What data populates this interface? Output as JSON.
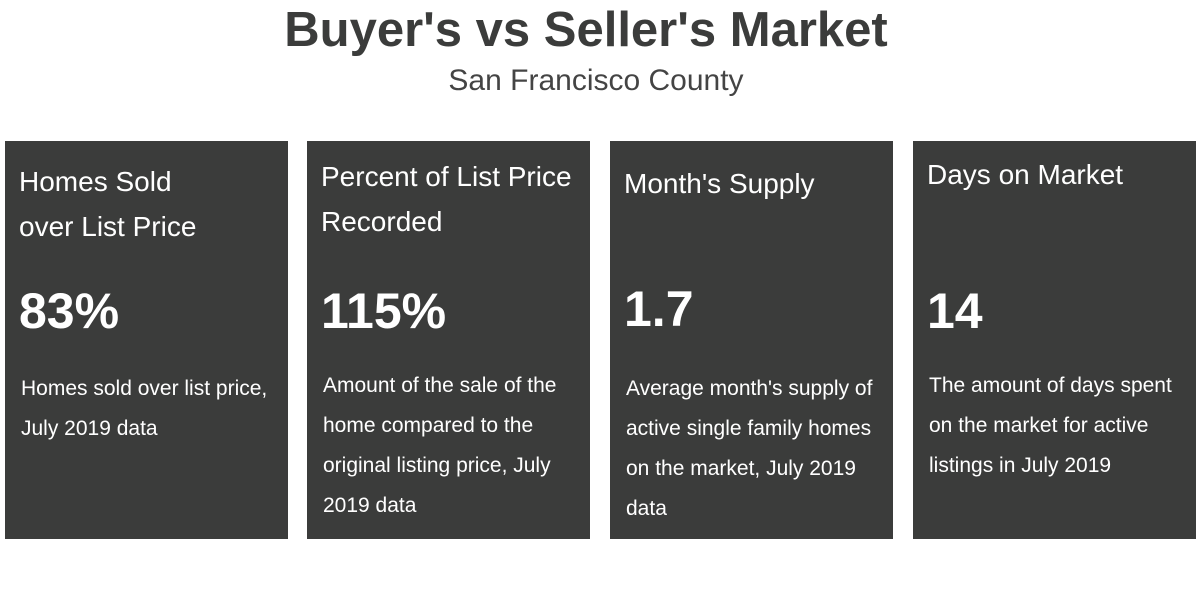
{
  "header": {
    "title": "Buyer's vs Seller's Market",
    "subtitle": "San Francisco County"
  },
  "cards": [
    {
      "title": "Homes Sold\nover List Price",
      "value": "83%",
      "description": "Homes sold over list price, July 2019 data"
    },
    {
      "title": "Percent of List Price Recorded",
      "value": "115%",
      "description": "Amount of the sale of the home compared to the original listing price, July 2019 data"
    },
    {
      "title": "Month's Supply",
      "value": "1.7",
      "description": "Average month's supply of active single family homes on the market, July 2019 data"
    },
    {
      "title": "Days on Market",
      "value": "14",
      "description": "The amount of days spent on the market for active listings in July 2019"
    }
  ]
}
